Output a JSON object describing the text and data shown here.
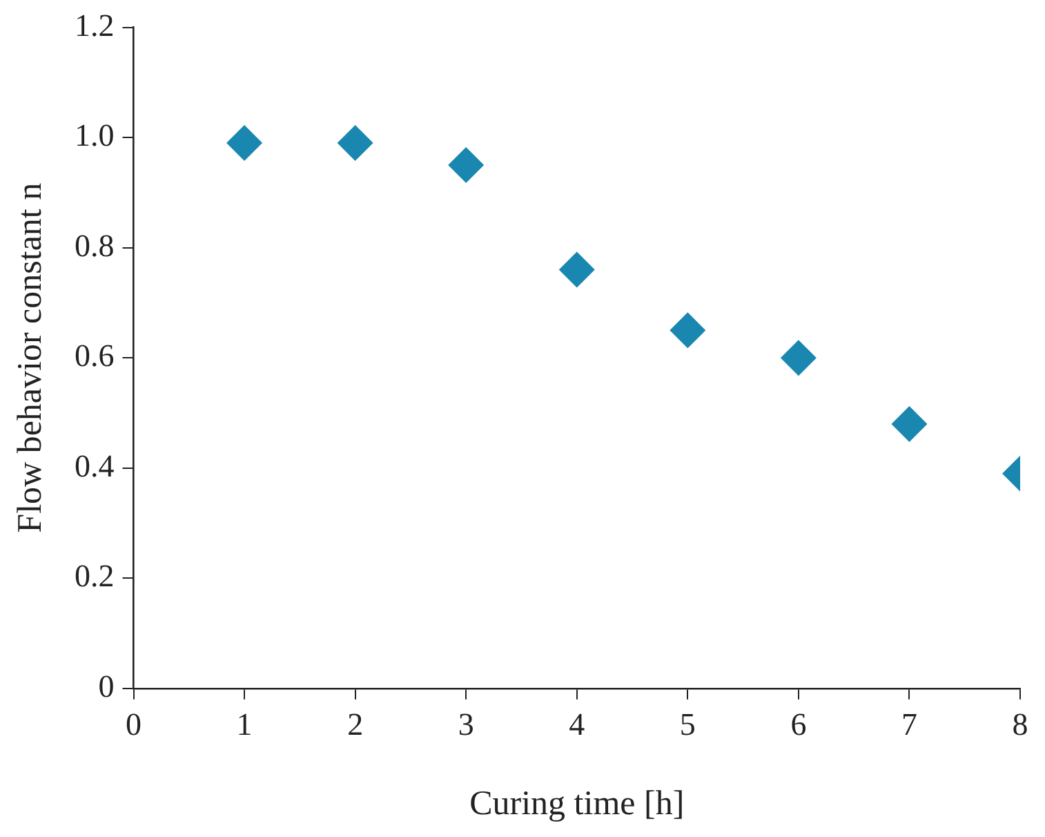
{
  "chart_data": {
    "type": "scatter",
    "xlabel": "Curing time [h]",
    "ylabel": "Flow behavior constant n",
    "x": [
      1,
      2,
      3,
      4,
      5,
      6,
      7,
      8
    ],
    "series": [
      {
        "color": "#1a87b0",
        "values": [
          0.99,
          0.99,
          0.95,
          0.76,
          0.65,
          0.6,
          0.48,
          0.39
        ]
      }
    ],
    "xlim": [
      0,
      8
    ],
    "xticks": [
      0,
      1,
      2,
      3,
      4,
      5,
      6,
      7,
      8
    ],
    "ylim": [
      0,
      1.2
    ],
    "yticks": [
      0,
      {
        "value": 0.2,
        "label": "0.2"
      },
      {
        "value": 0.4,
        "label": "0.4"
      },
      {
        "value": 0.6,
        "label": "0.6"
      },
      {
        "value": 0.8,
        "label": "0.8"
      },
      {
        "value": 1,
        "label": "1.0"
      },
      {
        "value": 1.2,
        "label": "1.2"
      }
    ],
    "marker": "diamond",
    "legend": false
  }
}
